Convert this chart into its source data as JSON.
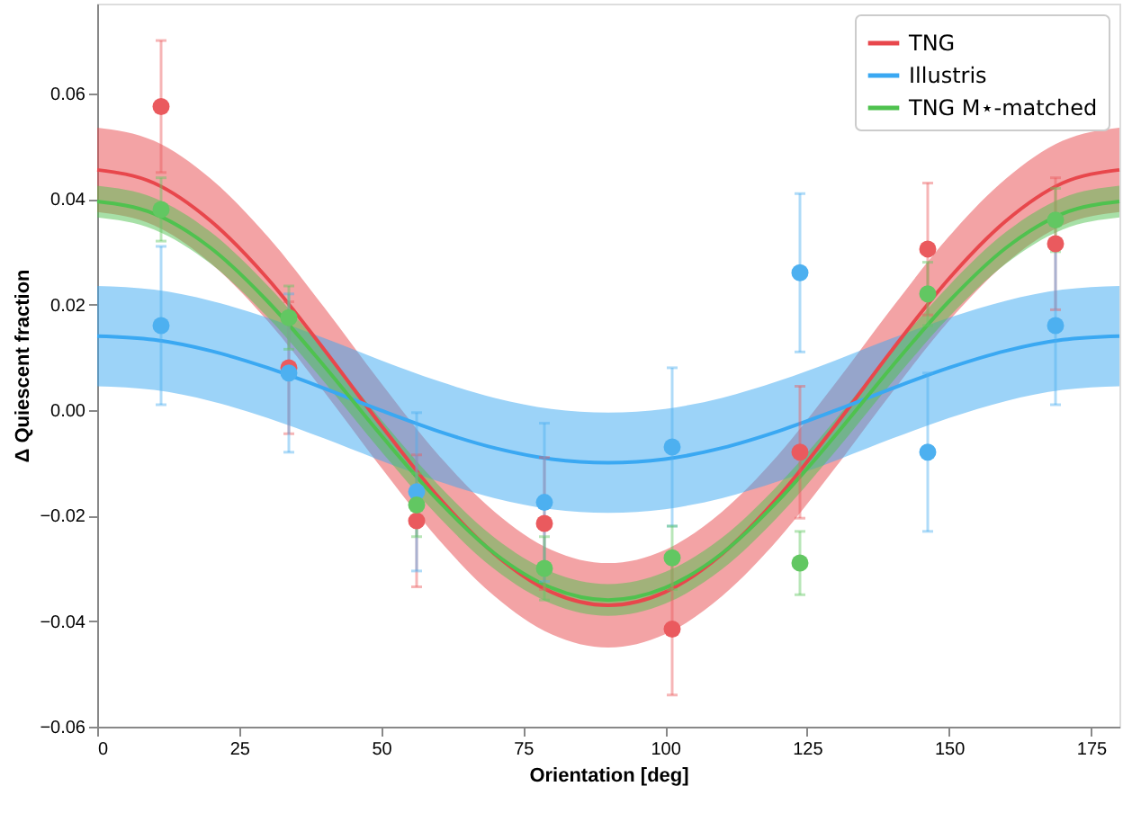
{
  "chart_data": {
    "type": "line",
    "xlabel": "Orientation [deg]",
    "ylabel": "Δ Quiescent fraction",
    "xlim": [
      0,
      180
    ],
    "ylim": [
      -0.06,
      0.077
    ],
    "xticks": [
      0,
      25,
      50,
      75,
      100,
      125,
      150,
      175
    ],
    "yticks": [
      -0.06,
      -0.04,
      -0.02,
      {
        "value": 0,
        "label": "0.00"
      },
      0.02,
      0.04,
      0.06
    ],
    "grid": false,
    "legend": "top right",
    "series": [
      {
        "name": "TNG",
        "line_style": "solid",
        "color": "#e8474c",
        "x": [
          0,
          10,
          20,
          30,
          40,
          50,
          60,
          70,
          80,
          90,
          100,
          110,
          120,
          130,
          140,
          150,
          160,
          170,
          180
        ],
        "values": [
          0.0455,
          0.043,
          0.0358,
          0.0249,
          0.0114,
          -0.0029,
          -0.0164,
          -0.0273,
          -0.0345,
          -0.037,
          -0.0345,
          -0.0273,
          -0.0164,
          -0.0029,
          0.0114,
          0.0249,
          0.0358,
          0.043,
          0.0455
        ],
        "lower": [
          0.0375,
          0.035,
          0.0278,
          0.0169,
          0.0034,
          -0.0109,
          -0.0244,
          -0.0353,
          -0.0425,
          -0.045,
          -0.0425,
          -0.0353,
          -0.0244,
          -0.0109,
          0.0034,
          0.0169,
          0.0278,
          0.035,
          0.0375
        ],
        "upper": [
          0.0535,
          0.051,
          0.0438,
          0.0329,
          0.0194,
          0.0051,
          -0.0084,
          -0.0193,
          -0.0265,
          -0.029,
          -0.0265,
          -0.0193,
          -0.0084,
          0.0051,
          0.0194,
          0.0329,
          0.0438,
          0.051,
          0.0535
        ]
      },
      {
        "name": "Illustris",
        "line_style": "solid",
        "color": "#3aa8f2",
        "x": [
          0,
          10,
          20,
          30,
          40,
          50,
          60,
          70,
          80,
          90,
          100,
          110,
          120,
          130,
          140,
          150,
          160,
          170,
          180
        ],
        "values": [
          0.014,
          0.0133,
          0.0112,
          0.008,
          0.0041,
          -0.0001,
          -0.004,
          -0.0072,
          -0.0093,
          -0.01,
          -0.0093,
          -0.0072,
          -0.004,
          -0.0001,
          0.0041,
          0.008,
          0.0112,
          0.0133,
          0.014
        ],
        "lower": [
          0.0045,
          0.0038,
          0.0017,
          -0.0015,
          -0.0054,
          -0.0096,
          -0.0135,
          -0.0167,
          -0.0188,
          -0.0195,
          -0.0188,
          -0.0167,
          -0.0135,
          -0.0096,
          -0.0054,
          -0.0015,
          0.0017,
          0.0038,
          0.0045
        ],
        "upper": [
          0.0235,
          0.0228,
          0.0207,
          0.0175,
          0.0136,
          0.0094,
          0.0055,
          0.0023,
          0.0002,
          -0.0005,
          0.0002,
          0.0023,
          0.0055,
          0.0094,
          0.0136,
          0.0175,
          0.0207,
          0.0228,
          0.0235
        ]
      },
      {
        "name": "TNG M⋆-matched",
        "line_style": "solid",
        "color": "#4fc24f",
        "x": [
          0,
          10,
          20,
          30,
          40,
          50,
          60,
          70,
          80,
          90,
          100,
          110,
          120,
          130,
          140,
          150,
          160,
          170,
          180
        ],
        "values": [
          0.0395,
          0.0372,
          0.0307,
          0.0206,
          0.0083,
          -0.0048,
          -0.0171,
          -0.0272,
          -0.0337,
          -0.036,
          -0.0337,
          -0.0272,
          -0.0171,
          -0.0048,
          0.0083,
          0.0206,
          0.0307,
          0.0372,
          0.0395
        ],
        "lower": [
          0.0365,
          0.0342,
          0.0277,
          0.0176,
          0.0053,
          -0.0078,
          -0.0201,
          -0.0302,
          -0.0367,
          -0.039,
          -0.0367,
          -0.0302,
          -0.0201,
          -0.0078,
          0.0053,
          0.0176,
          0.0277,
          0.0342,
          0.0365
        ],
        "upper": [
          0.0425,
          0.0402,
          0.0337,
          0.0236,
          0.0113,
          -0.0018,
          -0.0141,
          -0.0242,
          -0.0307,
          -0.033,
          -0.0307,
          -0.0242,
          -0.0141,
          -0.0018,
          0.0113,
          0.0236,
          0.0337,
          0.0402,
          0.0425
        ]
      },
      {
        "type": "scatter",
        "marker": "circle",
        "color": "#ea5a5e",
        "x": [
          11.25,
          33.75,
          56.25,
          78.75,
          101.25,
          123.75,
          146.25,
          168.75
        ],
        "values": [
          0.0575,
          0.008,
          -0.021,
          -0.0215,
          -0.0415,
          -0.008,
          0.0305,
          0.0315
        ],
        "errors": [
          0.0125,
          0.0125,
          0.0125,
          0.0125,
          0.0125,
          0.0125,
          0.0125,
          0.0125
        ]
      },
      {
        "type": "scatter",
        "marker": "circle",
        "color": "#4db0f0",
        "x": [
          11.25,
          33.75,
          56.25,
          78.75,
          101.25,
          123.75,
          146.25,
          168.75
        ],
        "values": [
          0.016,
          0.007,
          -0.0155,
          -0.0175,
          -0.007,
          0.026,
          -0.008,
          0.016
        ],
        "errors": [
          0.015,
          0.015,
          0.015,
          0.015,
          0.015,
          0.015,
          0.015,
          0.015
        ]
      },
      {
        "type": "scatter",
        "marker": "circle",
        "color": "#62c762",
        "x": [
          11.25,
          33.75,
          56.25,
          78.75,
          101.25,
          123.75,
          146.25,
          168.75
        ],
        "values": [
          0.038,
          0.0175,
          -0.018,
          -0.03,
          -0.028,
          -0.029,
          0.022,
          0.036
        ],
        "errors": [
          0.006,
          0.006,
          0.006,
          0.006,
          0.006,
          0.006,
          0.006,
          0.006
        ]
      }
    ]
  }
}
